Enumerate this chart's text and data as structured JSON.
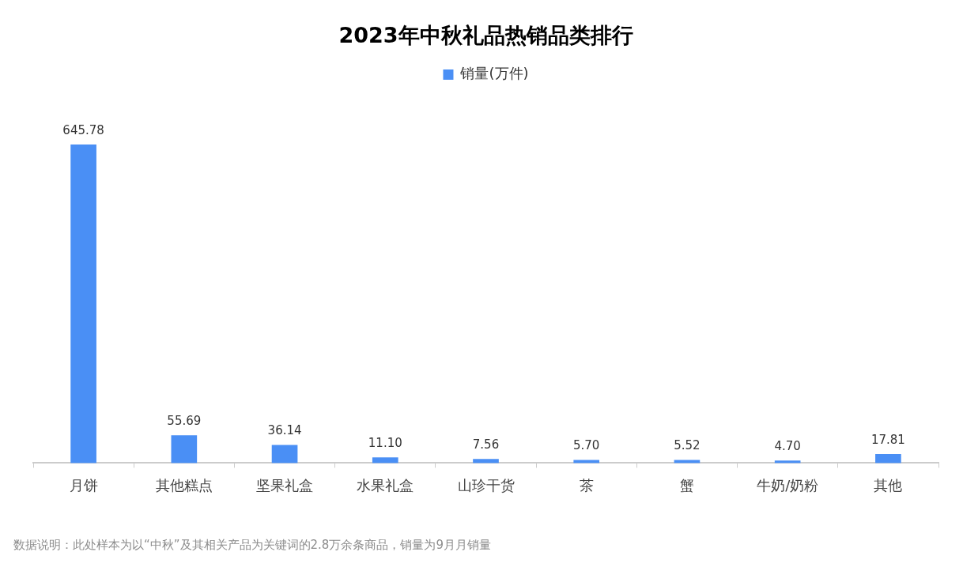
{
  "chart_data": {
    "type": "bar",
    "title": "2023年中秋礼品热销品类排行",
    "categories": [
      "月饼",
      "其他糕点",
      "坚果礼盒",
      "水果礼盒",
      "山珍干货",
      "茶",
      "蟹",
      "牛奶/奶粉",
      "其他"
    ],
    "series": [
      {
        "name": "销量(万件)",
        "color": "#4a8ff5",
        "values": [
          645.78,
          55.69,
          36.14,
          11.1,
          7.56,
          5.7,
          5.52,
          4.7,
          17.81
        ],
        "value_labels": [
          "645.78",
          "55.69",
          "36.14",
          "11.10",
          "7.56",
          "5.70",
          "5.52",
          "4.70",
          "17.81"
        ]
      }
    ],
    "legend": "top",
    "annotations": [
      "数据说明：此处样本为以“中秋”及其相关产品为关键词的2.8万余条商品，销量为9月月销量"
    ]
  }
}
